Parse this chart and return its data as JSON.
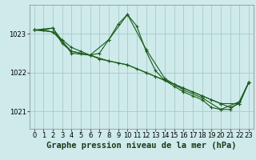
{
  "bg_color": "#ceeaea",
  "grid_color": "#aecece",
  "line_color": "#1a5c1a",
  "title": "Graphe pression niveau de la mer (hPa)",
  "title_fontsize": 7.5,
  "tick_fontsize": 6,
  "xlim": [
    -0.5,
    23.5
  ],
  "ylim": [
    1020.55,
    1023.75
  ],
  "yticks": [
    1021,
    1022,
    1023
  ],
  "xticks": [
    0,
    1,
    2,
    3,
    4,
    5,
    6,
    7,
    8,
    9,
    10,
    11,
    12,
    13,
    14,
    15,
    16,
    17,
    18,
    19,
    20,
    21,
    22,
    23
  ],
  "series": [
    {
      "x": [
        0,
        1,
        2,
        3,
        4,
        5,
        6,
        7,
        8,
        9,
        10,
        11,
        12,
        13,
        14,
        15,
        16,
        17,
        18,
        19,
        20,
        21,
        22,
        23
      ],
      "y": [
        1023.1,
        1023.1,
        1023.15,
        1022.75,
        1022.55,
        1022.5,
        1022.45,
        1022.5,
        1022.85,
        1023.25,
        1023.5,
        1023.2,
        1022.55,
        1022.05,
        1021.8,
        1021.65,
        1021.5,
        1021.4,
        1021.3,
        1021.1,
        1021.05,
        1021.05,
        1021.25,
        1021.75
      ]
    },
    {
      "x": [
        0,
        1,
        2,
        3,
        4,
        5,
        6,
        7,
        8,
        9,
        10,
        11,
        12,
        13,
        14,
        15,
        16,
        17,
        18,
        19,
        20,
        21,
        22,
        23
      ],
      "y": [
        1023.1,
        1023.1,
        1023.05,
        1022.85,
        1022.65,
        1022.55,
        1022.45,
        1022.35,
        1022.3,
        1022.25,
        1022.2,
        1022.1,
        1022.0,
        1021.9,
        1021.8,
        1021.7,
        1021.6,
        1021.5,
        1021.4,
        1021.3,
        1021.2,
        1021.1,
        1021.2,
        1021.75
      ]
    },
    {
      "x": [
        0,
        2,
        4,
        6,
        8,
        10,
        12,
        14,
        16,
        18,
        20,
        22,
        23
      ],
      "y": [
        1023.1,
        1023.15,
        1022.5,
        1022.45,
        1022.85,
        1023.5,
        1022.6,
        1021.85,
        1021.55,
        1021.35,
        1021.05,
        1021.25,
        1021.75
      ]
    },
    {
      "x": [
        0,
        2,
        4,
        6,
        8,
        10,
        12,
        14,
        16,
        18,
        20,
        22,
        23
      ],
      "y": [
        1023.1,
        1023.05,
        1022.55,
        1022.45,
        1022.3,
        1022.2,
        1022.0,
        1021.8,
        1021.6,
        1021.4,
        1021.2,
        1021.2,
        1021.75
      ]
    }
  ]
}
